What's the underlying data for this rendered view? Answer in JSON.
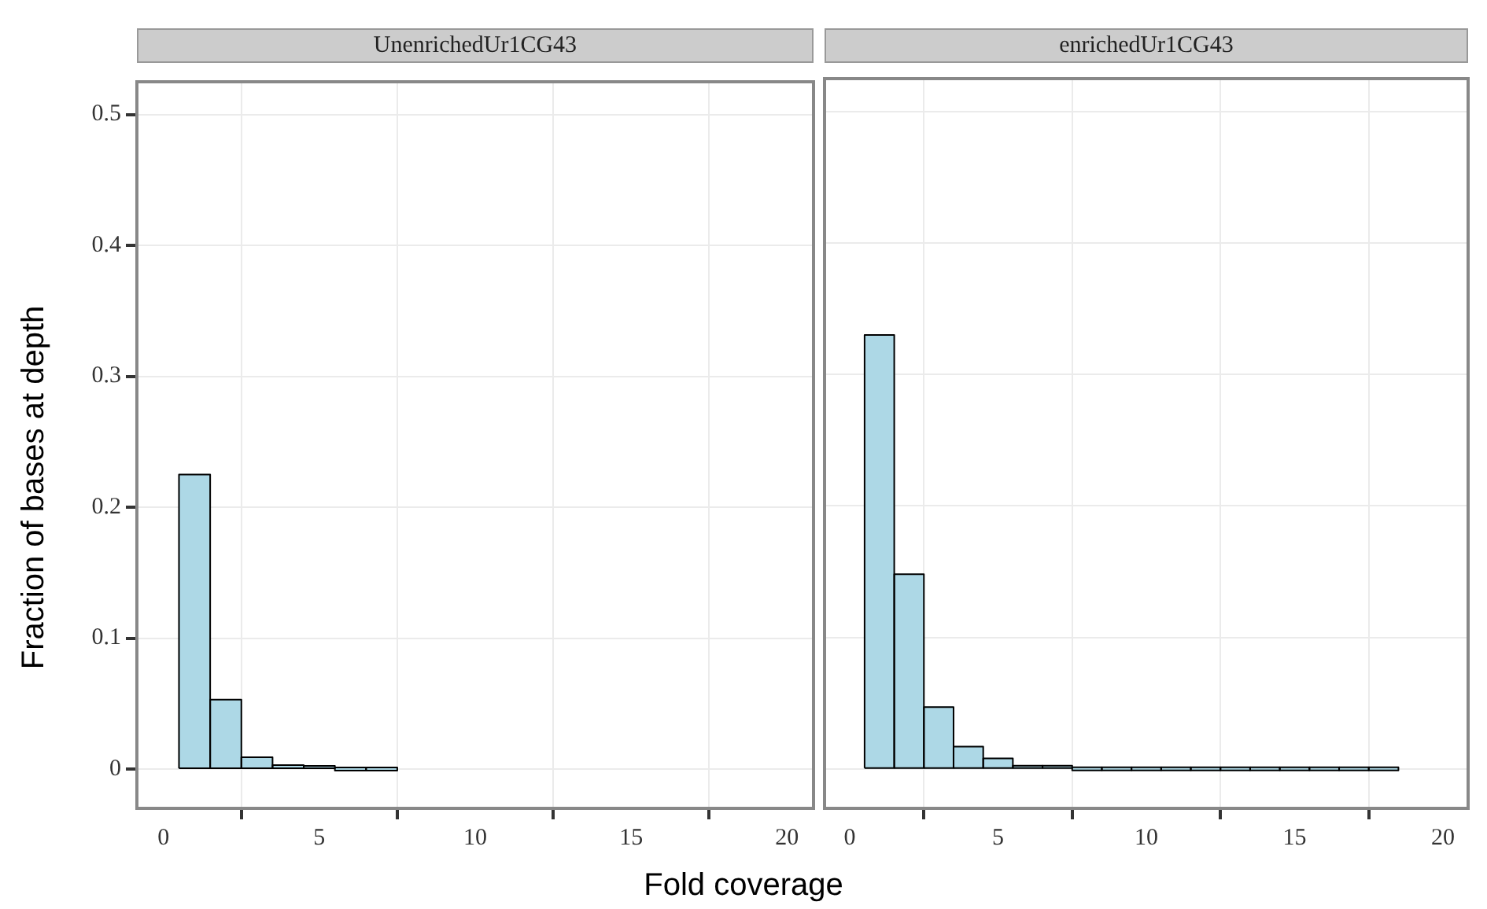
{
  "chart_data": [
    {
      "type": "histogram",
      "title": "UnenrichedUr1CG43",
      "xlabel": "Fold coverage",
      "ylabel": "Fraction of bases at depth",
      "bins": [
        0.5,
        1.5,
        2.5,
        3.5,
        4.5,
        5.5,
        6.5,
        7.5
      ],
      "values": [
        0.225,
        0.053,
        0.009,
        0.003,
        0.001,
        0,
        0
      ],
      "color": "#add8e6",
      "xlim": [
        -0.85,
        20.85
      ],
      "xticks": [
        0,
        5,
        10,
        15,
        20
      ],
      "ylim": [
        -0.03,
        0.525
      ],
      "yticks": [
        0,
        0.1,
        0.2,
        0.3,
        0.4,
        0.5
      ],
      "grid": true
    },
    {
      "type": "histogram",
      "title": "enrichedUr1CG43",
      "bins": [
        0.5,
        1.5,
        2.5,
        3.5,
        4.5,
        5.5,
        6.5,
        7.5,
        8.5,
        9.5,
        10.5,
        11.5,
        12.5,
        13.5,
        14.5,
        15.5,
        16.5,
        17.5,
        18.5
      ],
      "values": [
        0.33,
        0.148,
        0.047,
        0.017,
        0.008,
        0.002,
        0.001,
        0,
        0,
        0,
        0,
        0,
        0,
        0,
        0,
        0,
        0,
        0
      ],
      "color": "#add8e6",
      "xlim": [
        -0.85,
        20.85
      ],
      "xticks": [
        0,
        5,
        10,
        15,
        20
      ],
      "ylim": [
        -0.03,
        0.525
      ],
      "yticks": [
        0,
        0.1,
        0.2,
        0.3,
        0.4,
        0.5
      ],
      "grid": true,
      "tick_labels": "x"
    }
  ]
}
